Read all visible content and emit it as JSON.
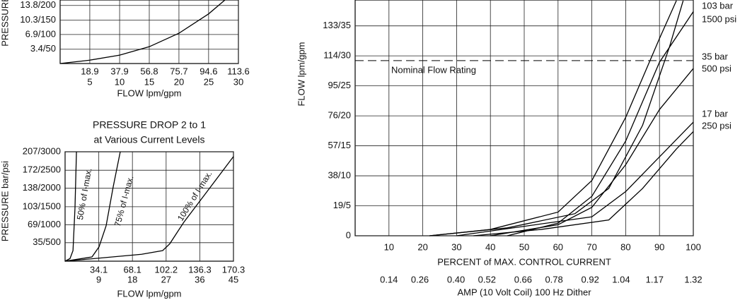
{
  "chart_data": [
    {
      "type": "line",
      "ylabel": "PRESSURE",
      "xlabel": "FLOW lpm/gpm",
      "xlim": [
        0,
        113.6
      ],
      "ylim": [
        0,
        15.1
      ],
      "x2lim": [
        0,
        30
      ],
      "grid": true,
      "xticks": [
        18.9,
        37.9,
        56.8,
        75.7,
        94.6,
        113.6
      ],
      "x2ticks": [
        5,
        10,
        15,
        20,
        25,
        30
      ],
      "yticks": [
        {
          "value": 3.4,
          "label": "3.4/50"
        },
        {
          "value": 6.9,
          "label": "6.9/100"
        },
        {
          "value": 10.3,
          "label": "10.3/150"
        },
        {
          "value": 13.8,
          "label": "13.8/200"
        }
      ],
      "series": [
        {
          "color": "#000000",
          "x": [
            0,
            18.9,
            37.9,
            56.8,
            75.7,
            94.6,
            105
          ],
          "values": [
            0,
            0.8,
            2.0,
            4.0,
            7.2,
            11.8,
            15.1
          ]
        }
      ]
    },
    {
      "type": "line",
      "title": "PRESSURE DROP 2 to 1",
      "subtitle": "at Various Current Levels",
      "ylabel": "PRESSURE bar/psi",
      "xlabel": "FLOW lpm/gpm",
      "xlim": [
        0,
        170.3
      ],
      "ylim": [
        0,
        207
      ],
      "x2lim": [
        0,
        45
      ],
      "grid": true,
      "xticks": [
        34.1,
        68.1,
        102.2,
        136.3,
        170.3
      ],
      "x2ticks": [
        9,
        18,
        27,
        36,
        45
      ],
      "yticks": [
        {
          "value": 35,
          "label": "35/500"
        },
        {
          "value": 69,
          "label": "69/1000"
        },
        {
          "value": 103,
          "label": "103/1500"
        },
        {
          "value": 138,
          "label": "138/2000"
        },
        {
          "value": 172,
          "label": "172/2500"
        },
        {
          "value": 207,
          "label": "207/3000"
        }
      ],
      "series": [
        {
          "name": "50% of I-max.",
          "color": "#000000",
          "x": [
            0,
            5,
            8,
            10,
            11.5
          ],
          "values": [
            0,
            5,
            20,
            100,
            207
          ]
        },
        {
          "name": "75% of I-max.",
          "color": "#000000",
          "x": [
            0,
            27.2,
            34.3,
            41.5,
            48.7,
            55.8
          ],
          "values": [
            0,
            8,
            27,
            67,
            141,
            207
          ]
        },
        {
          "name": "100% of I-max.",
          "color": "#000000",
          "x": [
            0,
            77.3,
            98.7,
            105.9,
            120.2,
            141.7,
            170.3
          ],
          "values": [
            0,
            13,
            20,
            33,
            74,
            127,
            198
          ]
        }
      ]
    },
    {
      "type": "line",
      "ylabel": "FLOW lpm/gpm",
      "xlabel": "PERCENT of MAX. CONTROL CURRENT",
      "x2label": "AMP (10 Volt Coil) 100 Hz Dither",
      "xlim": [
        0,
        100
      ],
      "ylim": [
        0,
        149.4
      ],
      "x2lim": [
        0.009,
        1.32
      ],
      "grid": true,
      "xticks": [
        10,
        20,
        30,
        40,
        50,
        60,
        70,
        80,
        90,
        100
      ],
      "x2ticks": [
        0.14,
        0.26,
        {
          "value": 0.4,
          "label": "0.40"
        },
        0.52,
        0.66,
        0.78,
        0.92,
        1.04,
        1.17,
        1.32
      ],
      "yticks": [
        {
          "value": 0,
          "label": "0"
        },
        {
          "value": 19,
          "label": "19/5"
        },
        {
          "value": 38,
          "label": "38/10"
        },
        {
          "value": 57,
          "label": "57/15"
        },
        {
          "value": 76,
          "label": "76/20"
        },
        {
          "value": 95,
          "label": "95/25"
        },
        {
          "value": 114,
          "label": "114/30"
        },
        {
          "value": 133,
          "label": "133/35"
        }
      ],
      "reference_line": {
        "value": 111,
        "label": "Nominal Flow Rating",
        "style": "dashed"
      },
      "annotations": [
        "103 bar",
        "1500 psi",
        "35 bar",
        "500 psi",
        "17 bar",
        "250 psi"
      ],
      "series": [
        {
          "color": "#000000",
          "x": [
            22,
            40,
            60,
            70,
            80,
            90,
            95
          ],
          "values": [
            0,
            4,
            15,
            35,
            75,
            125,
            149
          ]
        },
        {
          "color": "#000000",
          "x": [
            45,
            60,
            70,
            80,
            90,
            100
          ],
          "values": [
            0,
            8,
            25,
            60,
            110,
            142
          ]
        },
        {
          "color": "#000000",
          "x": [
            22,
            45,
            65,
            75,
            85,
            93,
            97
          ],
          "values": [
            0,
            5,
            14,
            30,
            70,
            120,
            149
          ]
        },
        {
          "color": "#000000",
          "x": [
            40,
            60,
            70,
            80,
            90,
            100
          ],
          "values": [
            0,
            7,
            18,
            45,
            80,
            106
          ]
        },
        {
          "color": "#000000",
          "x": [
            30,
            50,
            70,
            80,
            90,
            100
          ],
          "values": [
            0,
            6,
            12,
            28,
            50,
            72
          ]
        },
        {
          "color": "#000000",
          "x": [
            35,
            55,
            75,
            85,
            95,
            100
          ],
          "values": [
            0,
            4,
            10,
            30,
            55,
            66
          ]
        }
      ]
    }
  ]
}
